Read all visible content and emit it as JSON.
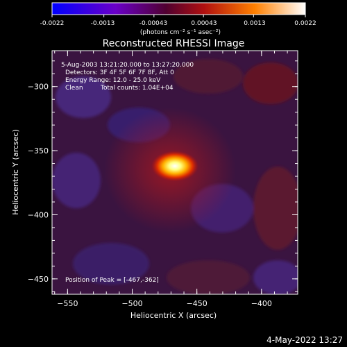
{
  "chart_data": {
    "type": "heatmap",
    "title": "Reconstructed RHESSI Image",
    "xlabel": "Heliocentric X (arcsec)",
    "ylabel": "Heliocentric Y (arcsec)",
    "xlim": [
      -562,
      -372
    ],
    "ylim": [
      -462,
      -272
    ],
    "xticks": [
      -550,
      -500,
      -450,
      -400
    ],
    "yticks": [
      -300,
      -350,
      -400,
      -450
    ],
    "colorbar": {
      "range": [
        -0.0022,
        0.0022
      ],
      "ticks": [
        "-0.0022",
        "-0.0013",
        "-0.00043",
        "0.00043",
        "0.0013",
        "0.0022"
      ],
      "tick_values": [
        -0.0022,
        -0.0013,
        -0.00043,
        0.00043,
        0.0013,
        0.0022
      ],
      "unit_label": "(photons cm⁻² s⁻¹ asec⁻²)"
    },
    "source": {
      "peak_x": -467,
      "peak_y": -362,
      "peak_value": 0.0022
    },
    "annotations": {
      "time_range": "5-Aug-2003 13:21:20.000 to 13:27:20.000",
      "detectors": "Detectors: 3F 4F 5F 6F 7F 8F, Att 0",
      "energy": "Energy Range: 12.0 - 25.0 keV",
      "method": "Clean",
      "counts": "Total counts: 1.04E+04",
      "peak": "Position of Peak = [-467,-362]"
    }
  },
  "footer": {
    "date": "4-May-2022 13:27"
  }
}
